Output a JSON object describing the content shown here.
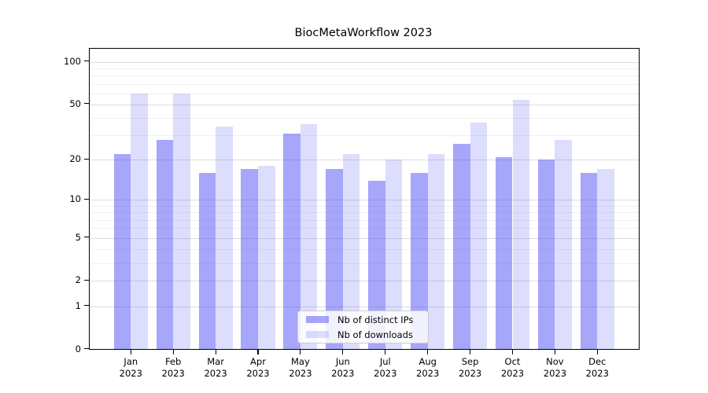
{
  "title": "BiocMetaWorkflow 2023",
  "chart_data": {
    "type": "bar",
    "title": "BiocMetaWorkflow 2023",
    "months": [
      "Jan",
      "Feb",
      "Mar",
      "Apr",
      "May",
      "Jun",
      "Jul",
      "Aug",
      "Sep",
      "Oct",
      "Nov",
      "Dec"
    ],
    "year_label": "2023",
    "series": [
      {
        "name": "Nb of distinct IPs",
        "values": [
          22,
          28,
          16,
          17,
          31,
          17,
          14,
          16,
          26,
          21,
          20,
          16
        ],
        "color_hex": "#aaaaf8",
        "fill_rgba": "rgba(85,85,245,0.52)"
      },
      {
        "name": "Nb of downloads",
        "values": [
          60,
          60,
          35,
          18,
          36,
          22,
          20,
          22,
          37,
          54,
          28,
          17
        ],
        "color_hex": "#dadaf8",
        "fill_rgba": "rgba(85,85,245,0.20)"
      }
    ],
    "y_scale": "log10(value+1)",
    "y_ticks": [
      0,
      1,
      2,
      5,
      10,
      20,
      50,
      100
    ],
    "y_minor_ticks": [
      3,
      4,
      6,
      7,
      8,
      9,
      30,
      40,
      60,
      70,
      80,
      90
    ],
    "ylim": [
      0,
      125
    ],
    "xlabel": "",
    "ylabel": "",
    "grid": "horizontal",
    "grid_major_color": "#dcdcdc",
    "grid_minor_color": "#f0f0f0",
    "legend_position": "lower center",
    "axis_color": "#000000",
    "background_color": "#ffffff"
  }
}
